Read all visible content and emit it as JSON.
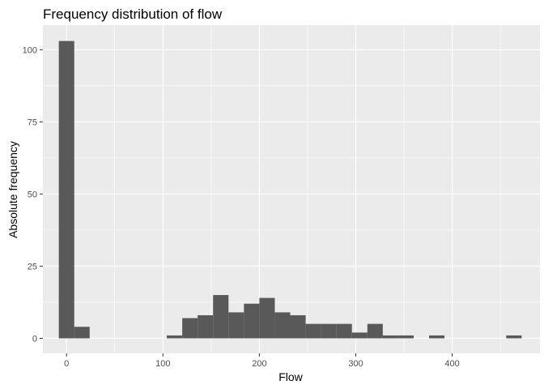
{
  "chart_data": {
    "type": "bar",
    "subtype": "histogram",
    "title": "Frequency distribution of flow",
    "xlabel": "Flow",
    "ylabel": "Absolute frequency",
    "xlim": [
      -24.5,
      491
    ],
    "ylim": [
      -5.2,
      108.5
    ],
    "x_ticks": [
      0,
      100,
      200,
      300,
      400
    ],
    "x_tick_labels": [
      "0",
      "100",
      "200",
      "300",
      "400"
    ],
    "y_ticks": [
      0,
      25,
      50,
      75,
      100
    ],
    "y_tick_labels": [
      "0",
      "25",
      "50",
      "75",
      "100"
    ],
    "bin_width": 16,
    "bins": [
      {
        "start": -8,
        "end": 8,
        "count": 103
      },
      {
        "start": 8,
        "end": 24,
        "count": 4
      },
      {
        "start": 104,
        "end": 120,
        "count": 1
      },
      {
        "start": 120,
        "end": 136,
        "count": 7
      },
      {
        "start": 136,
        "end": 152,
        "count": 8
      },
      {
        "start": 152,
        "end": 168,
        "count": 15
      },
      {
        "start": 168,
        "end": 184,
        "count": 9
      },
      {
        "start": 184,
        "end": 200,
        "count": 12
      },
      {
        "start": 200,
        "end": 216,
        "count": 14
      },
      {
        "start": 216,
        "end": 232,
        "count": 9
      },
      {
        "start": 232,
        "end": 248,
        "count": 8
      },
      {
        "start": 248,
        "end": 264,
        "count": 5
      },
      {
        "start": 264,
        "end": 280,
        "count": 5
      },
      {
        "start": 280,
        "end": 296,
        "count": 5
      },
      {
        "start": 296,
        "end": 312,
        "count": 2
      },
      {
        "start": 312,
        "end": 328,
        "count": 5
      },
      {
        "start": 328,
        "end": 344,
        "count": 1
      },
      {
        "start": 344,
        "end": 360,
        "count": 1
      },
      {
        "start": 376,
        "end": 392,
        "count": 1
      },
      {
        "start": 456,
        "end": 472,
        "count": 1
      }
    ],
    "grid": true,
    "colors": {
      "panel_background": "#ebebeb",
      "grid_major": "#ffffff",
      "bar_fill": "#595959",
      "tick_label": "#4d4d4d",
      "tick_mark": "#333333"
    }
  }
}
